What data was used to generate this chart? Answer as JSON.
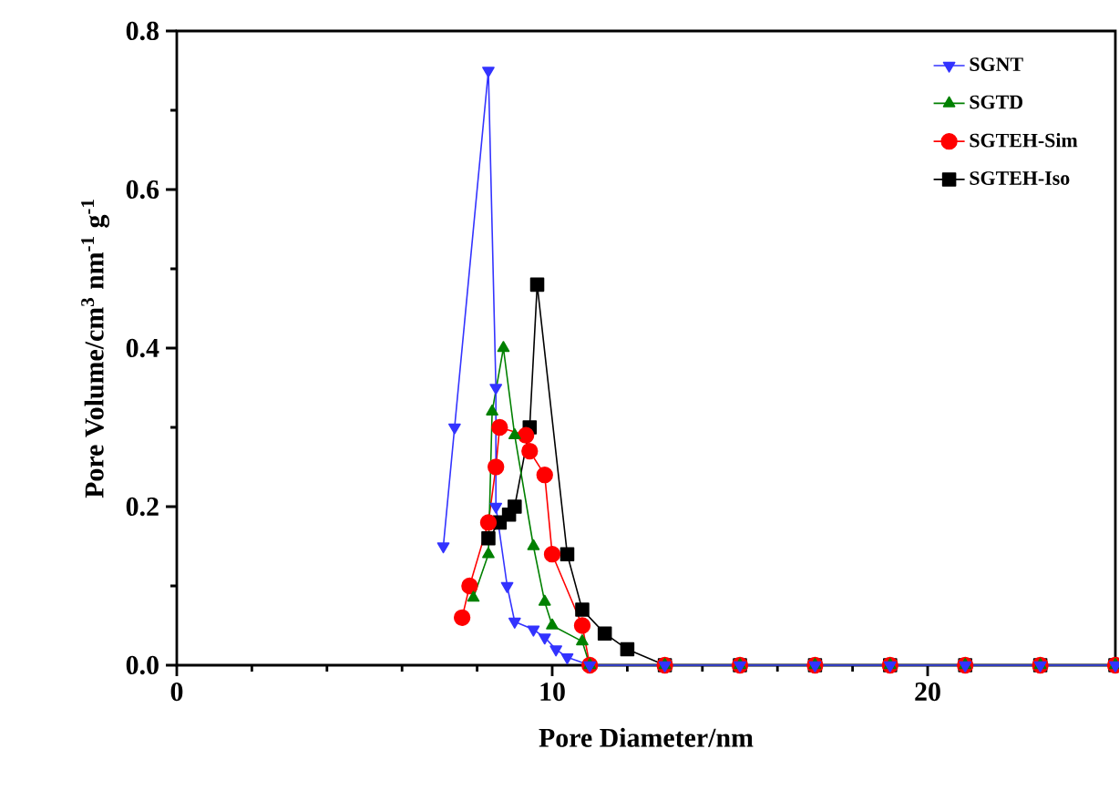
{
  "chart_data": {
    "type": "line",
    "xlabel": "Pore Diameter/nm",
    "ylabel": "Pore Volume/cm$^{3}$ nm$^{-1}$ g$^{-1}$",
    "xlim": [
      0,
      25
    ],
    "ylim": [
      0,
      0.8
    ],
    "xticks": [
      0,
      10,
      20
    ],
    "yticks": [
      {
        "value": 0,
        "label": "0.0"
      },
      0.2,
      0.4,
      0.6,
      0.8
    ],
    "legend": "top right",
    "line_style": "solid",
    "series": [
      {
        "name": "SGNT",
        "color": "#3333ff",
        "marker": "triangle-down",
        "x": [
          7.1,
          7.4,
          8.3,
          8.5,
          8.5,
          8.8,
          9.0,
          9.5,
          9.8,
          10.1,
          10.4,
          11,
          13,
          15,
          17,
          19,
          21,
          23,
          25
        ],
        "values": [
          0.15,
          0.3,
          0.75,
          0.35,
          0.2,
          0.1,
          0.055,
          0.045,
          0.035,
          0.02,
          0.01,
          0,
          0,
          0,
          0,
          0,
          0,
          0,
          0
        ]
      },
      {
        "name": "SGTD",
        "color": "#008000",
        "marker": "triangle",
        "x": [
          7.9,
          8.3,
          8.4,
          8.7,
          9.0,
          9.5,
          9.8,
          10.0,
          10.8,
          11,
          13,
          15,
          17,
          19,
          21,
          23,
          25
        ],
        "values": [
          0.085,
          0.14,
          0.32,
          0.4,
          0.29,
          0.15,
          0.08,
          0.05,
          0.03,
          0,
          0,
          0,
          0,
          0,
          0,
          0,
          0
        ]
      },
      {
        "name": "SGTEH-Sim",
        "color": "#ff0000",
        "marker": "circle",
        "x": [
          7.6,
          7.8,
          8.3,
          8.5,
          8.6,
          9.3,
          9.4,
          9.8,
          10.0,
          10.8,
          11,
          13,
          15,
          17,
          19,
          21,
          23,
          25
        ],
        "values": [
          0.06,
          0.1,
          0.18,
          0.25,
          0.3,
          0.29,
          0.27,
          0.24,
          0.14,
          0.05,
          0,
          0,
          0,
          0,
          0,
          0,
          0,
          0
        ]
      },
      {
        "name": "SGTEH-Iso",
        "color": "#000000",
        "marker": "square",
        "x": [
          8.3,
          8.6,
          8.85,
          9.0,
          9.4,
          9.6,
          10.4,
          10.8,
          11.4,
          12.0,
          13,
          15,
          17,
          19,
          21,
          23,
          25
        ],
        "values": [
          0.16,
          0.18,
          0.19,
          0.2,
          0.3,
          0.48,
          0.14,
          0.07,
          0.04,
          0.02,
          0,
          0,
          0,
          0,
          0,
          0,
          0
        ]
      }
    ]
  }
}
